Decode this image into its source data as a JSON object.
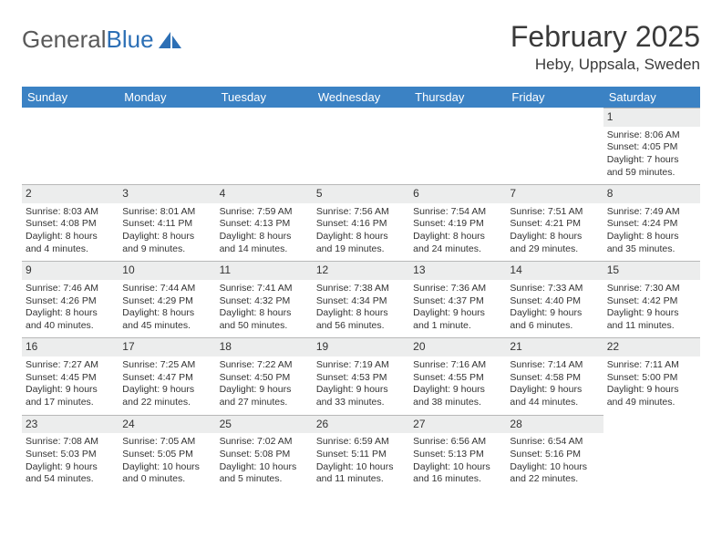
{
  "logo": {
    "text1": "General",
    "text2": "Blue"
  },
  "title": "February 2025",
  "location": "Heby, Uppsala, Sweden",
  "colors": {
    "header_bg": "#3b82c4",
    "header_text": "#ffffff",
    "daynum_bg": "#eceded",
    "daynum_border": "#b8b8b8",
    "body_text": "#333333",
    "logo_gray": "#5a5a5a",
    "logo_blue": "#2c6fb5"
  },
  "weekdays": [
    "Sunday",
    "Monday",
    "Tuesday",
    "Wednesday",
    "Thursday",
    "Friday",
    "Saturday"
  ],
  "weeks": [
    [
      null,
      null,
      null,
      null,
      null,
      null,
      {
        "n": "1",
        "sunrise": "8:06 AM",
        "sunset": "4:05 PM",
        "daylight": "7 hours and 59 minutes."
      }
    ],
    [
      {
        "n": "2",
        "sunrise": "8:03 AM",
        "sunset": "4:08 PM",
        "daylight": "8 hours and 4 minutes."
      },
      {
        "n": "3",
        "sunrise": "8:01 AM",
        "sunset": "4:11 PM",
        "daylight": "8 hours and 9 minutes."
      },
      {
        "n": "4",
        "sunrise": "7:59 AM",
        "sunset": "4:13 PM",
        "daylight": "8 hours and 14 minutes."
      },
      {
        "n": "5",
        "sunrise": "7:56 AM",
        "sunset": "4:16 PM",
        "daylight": "8 hours and 19 minutes."
      },
      {
        "n": "6",
        "sunrise": "7:54 AM",
        "sunset": "4:19 PM",
        "daylight": "8 hours and 24 minutes."
      },
      {
        "n": "7",
        "sunrise": "7:51 AM",
        "sunset": "4:21 PM",
        "daylight": "8 hours and 29 minutes."
      },
      {
        "n": "8",
        "sunrise": "7:49 AM",
        "sunset": "4:24 PM",
        "daylight": "8 hours and 35 minutes."
      }
    ],
    [
      {
        "n": "9",
        "sunrise": "7:46 AM",
        "sunset": "4:26 PM",
        "daylight": "8 hours and 40 minutes."
      },
      {
        "n": "10",
        "sunrise": "7:44 AM",
        "sunset": "4:29 PM",
        "daylight": "8 hours and 45 minutes."
      },
      {
        "n": "11",
        "sunrise": "7:41 AM",
        "sunset": "4:32 PM",
        "daylight": "8 hours and 50 minutes."
      },
      {
        "n": "12",
        "sunrise": "7:38 AM",
        "sunset": "4:34 PM",
        "daylight": "8 hours and 56 minutes."
      },
      {
        "n": "13",
        "sunrise": "7:36 AM",
        "sunset": "4:37 PM",
        "daylight": "9 hours and 1 minute."
      },
      {
        "n": "14",
        "sunrise": "7:33 AM",
        "sunset": "4:40 PM",
        "daylight": "9 hours and 6 minutes."
      },
      {
        "n": "15",
        "sunrise": "7:30 AM",
        "sunset": "4:42 PM",
        "daylight": "9 hours and 11 minutes."
      }
    ],
    [
      {
        "n": "16",
        "sunrise": "7:27 AM",
        "sunset": "4:45 PM",
        "daylight": "9 hours and 17 minutes."
      },
      {
        "n": "17",
        "sunrise": "7:25 AM",
        "sunset": "4:47 PM",
        "daylight": "9 hours and 22 minutes."
      },
      {
        "n": "18",
        "sunrise": "7:22 AM",
        "sunset": "4:50 PM",
        "daylight": "9 hours and 27 minutes."
      },
      {
        "n": "19",
        "sunrise": "7:19 AM",
        "sunset": "4:53 PM",
        "daylight": "9 hours and 33 minutes."
      },
      {
        "n": "20",
        "sunrise": "7:16 AM",
        "sunset": "4:55 PM",
        "daylight": "9 hours and 38 minutes."
      },
      {
        "n": "21",
        "sunrise": "7:14 AM",
        "sunset": "4:58 PM",
        "daylight": "9 hours and 44 minutes."
      },
      {
        "n": "22",
        "sunrise": "7:11 AM",
        "sunset": "5:00 PM",
        "daylight": "9 hours and 49 minutes."
      }
    ],
    [
      {
        "n": "23",
        "sunrise": "7:08 AM",
        "sunset": "5:03 PM",
        "daylight": "9 hours and 54 minutes."
      },
      {
        "n": "24",
        "sunrise": "7:05 AM",
        "sunset": "5:05 PM",
        "daylight": "10 hours and 0 minutes."
      },
      {
        "n": "25",
        "sunrise": "7:02 AM",
        "sunset": "5:08 PM",
        "daylight": "10 hours and 5 minutes."
      },
      {
        "n": "26",
        "sunrise": "6:59 AM",
        "sunset": "5:11 PM",
        "daylight": "10 hours and 11 minutes."
      },
      {
        "n": "27",
        "sunrise": "6:56 AM",
        "sunset": "5:13 PM",
        "daylight": "10 hours and 16 minutes."
      },
      {
        "n": "28",
        "sunrise": "6:54 AM",
        "sunset": "5:16 PM",
        "daylight": "10 hours and 22 minutes."
      },
      null
    ]
  ],
  "labels": {
    "sunrise": "Sunrise:",
    "sunset": "Sunset:",
    "daylight": "Daylight:"
  }
}
